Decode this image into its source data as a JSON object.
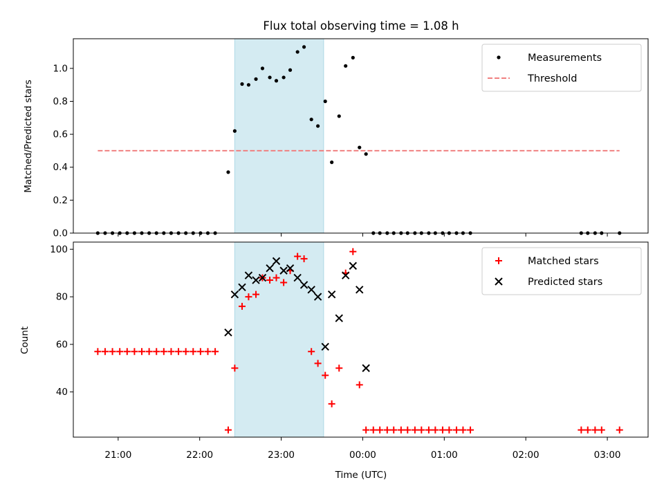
{
  "chart_data": [
    {
      "type": "scatter",
      "title": "Flux total observing time = 1.08 h",
      "xlabel": "",
      "ylabel": "Matched/Predicted stars",
      "xlim_hours": [
        20.45,
        27.5
      ],
      "ylim": [
        0,
        1.18
      ],
      "yticks": [
        0.0,
        0.2,
        0.4,
        0.6,
        0.8,
        1.0
      ],
      "ytick_labels": [
        "0.0",
        "0.2",
        "0.4",
        "0.6",
        "0.8",
        "1.0"
      ],
      "legend_position": "top-right",
      "highlight_span": {
        "x0": 22.43,
        "x1": 23.52,
        "color": "#add8e6"
      },
      "series": [
        {
          "name": "Measurements",
          "marker": "dot",
          "color": "#000000",
          "x": [
            20.75,
            20.84,
            20.93,
            21.02,
            21.11,
            21.2,
            21.29,
            21.38,
            21.47,
            21.56,
            21.65,
            21.74,
            21.83,
            21.92,
            22.01,
            22.1,
            22.19,
            22.35,
            22.43,
            22.52,
            22.6,
            22.69,
            22.77,
            22.86,
            22.94,
            23.03,
            23.11,
            23.2,
            23.28,
            23.37,
            23.45,
            23.54,
            23.62,
            23.71,
            23.79,
            23.88,
            23.96,
            24.04,
            24.13,
            24.21,
            24.3,
            24.38,
            24.47,
            24.55,
            24.64,
            24.72,
            24.81,
            24.89,
            24.98,
            25.06,
            25.15,
            25.23,
            25.32,
            26.68,
            26.76,
            26.85,
            26.93,
            27.15
          ],
          "y": [
            0,
            0,
            0,
            0,
            0,
            0,
            0,
            0,
            0,
            0,
            0,
            0,
            0,
            0,
            0,
            0,
            0,
            0.37,
            0.62,
            0.905,
            0.9,
            0.935,
            1.0,
            0.945,
            0.925,
            0.945,
            0.99,
            1.1,
            1.13,
            0.69,
            0.65,
            0.8,
            0.43,
            0.71,
            1.015,
            1.065,
            0.52,
            0.48,
            0,
            0,
            0,
            0,
            0,
            0,
            0,
            0,
            0,
            0,
            0,
            0,
            0,
            0,
            0,
            0,
            0,
            0,
            0,
            0
          ]
        },
        {
          "name": "Threshold",
          "marker": "dashed-line",
          "color": "#f08080",
          "x": [
            20.75,
            27.15
          ],
          "y": [
            0.5,
            0.5
          ]
        }
      ]
    },
    {
      "type": "scatter",
      "title": "",
      "xlabel": "Time (UTC)",
      "ylabel": "Count",
      "xlim_hours": [
        20.45,
        27.5
      ],
      "ylim": [
        21,
        103
      ],
      "yticks": [
        40,
        60,
        80,
        100
      ],
      "ytick_labels": [
        "40",
        "60",
        "80",
        "100"
      ],
      "xticks_hours": [
        21,
        22,
        23,
        24,
        25,
        26,
        27
      ],
      "xtick_labels": [
        "21:00",
        "22:00",
        "23:00",
        "00:00",
        "01:00",
        "02:00",
        "03:00"
      ],
      "legend_position": "top-right",
      "highlight_span": {
        "x0": 22.43,
        "x1": 23.52,
        "color": "#add8e6"
      },
      "series": [
        {
          "name": "Matched stars",
          "marker": "plus",
          "color": "#ff0000",
          "x": [
            20.75,
            20.84,
            20.93,
            21.02,
            21.11,
            21.2,
            21.29,
            21.38,
            21.47,
            21.56,
            21.65,
            21.74,
            21.83,
            21.92,
            22.01,
            22.1,
            22.19,
            22.35,
            22.43,
            22.52,
            22.6,
            22.69,
            22.77,
            22.86,
            22.94,
            23.03,
            23.11,
            23.2,
            23.28,
            23.37,
            23.45,
            23.54,
            23.62,
            23.71,
            23.79,
            23.88,
            23.96,
            24.04,
            24.13,
            24.21,
            24.3,
            24.38,
            24.47,
            24.55,
            24.64,
            24.72,
            24.81,
            24.89,
            24.98,
            25.06,
            25.15,
            25.23,
            25.32,
            26.68,
            26.76,
            26.85,
            26.93,
            27.15
          ],
          "y": [
            57,
            57,
            57,
            57,
            57,
            57,
            57,
            57,
            57,
            57,
            57,
            57,
            57,
            57,
            57,
            57,
            57,
            24,
            50,
            76,
            80,
            81,
            88,
            87,
            88,
            86,
            91,
            97,
            96,
            57,
            52,
            47,
            35,
            50,
            90,
            99,
            43,
            24,
            24,
            24,
            24,
            24,
            24,
            24,
            24,
            24,
            24,
            24,
            24,
            24,
            24,
            24,
            24,
            24,
            24,
            24,
            24,
            24
          ]
        },
        {
          "name": "Predicted stars",
          "marker": "x",
          "color": "#000000",
          "x": [
            22.35,
            22.43,
            22.52,
            22.6,
            22.69,
            22.77,
            22.86,
            22.94,
            23.03,
            23.11,
            23.2,
            23.28,
            23.37,
            23.45,
            23.54,
            23.62,
            23.71,
            23.79,
            23.88,
            23.96,
            24.04
          ],
          "y": [
            65,
            81,
            84,
            89,
            87,
            88,
            92,
            95,
            91,
            92,
            88,
            85,
            83,
            80,
            59,
            81,
            71,
            89,
            93,
            83,
            50
          ]
        }
      ]
    }
  ]
}
